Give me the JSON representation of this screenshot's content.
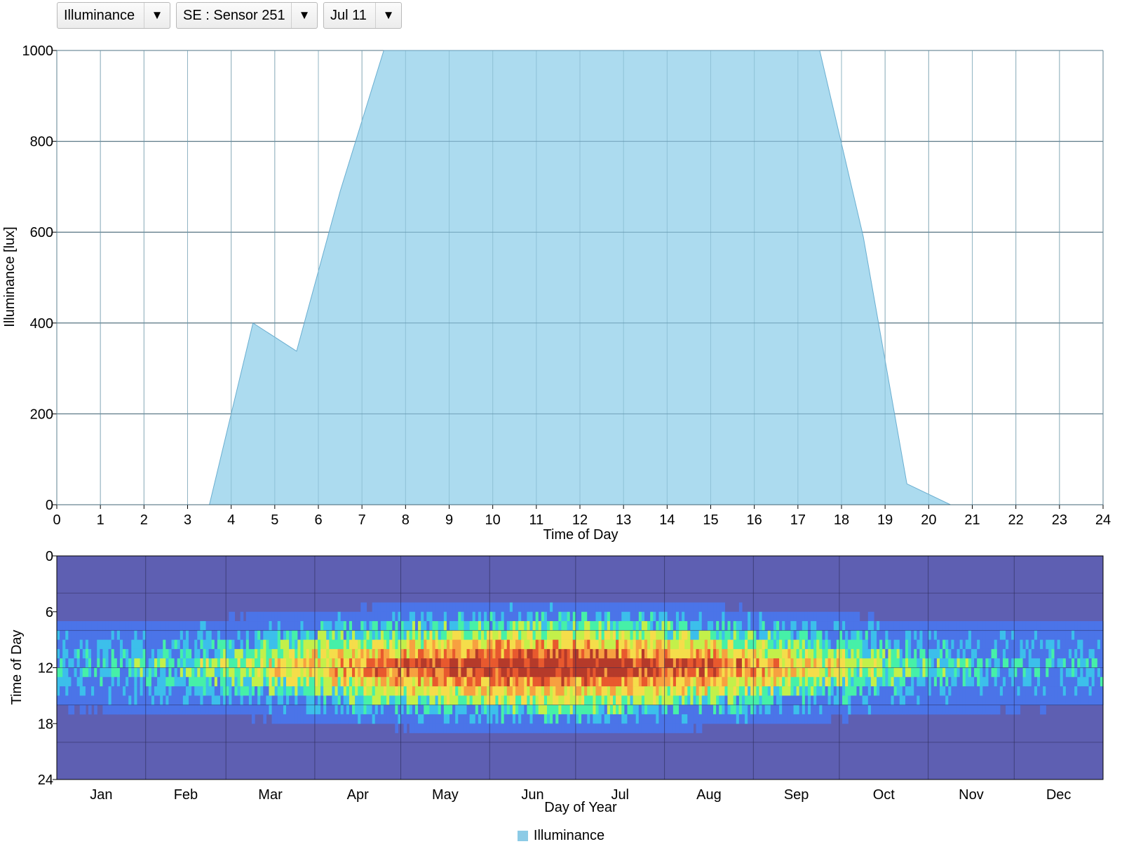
{
  "toolbar": {
    "metric": {
      "value": "Illuminance"
    },
    "sensor": {
      "value": "SE : Sensor 251"
    },
    "date": {
      "value": "Jul 11"
    }
  },
  "chart_data": [
    {
      "type": "area",
      "xlabel": "Time of Day",
      "ylabel": "Illuminance [lux]",
      "xlim": [
        0,
        24
      ],
      "ylim": [
        0,
        1000
      ],
      "xticks": [
        0,
        1,
        2,
        3,
        4,
        5,
        6,
        7,
        8,
        9,
        10,
        11,
        12,
        13,
        14,
        15,
        16,
        17,
        18,
        19,
        20,
        21,
        22,
        23,
        24
      ],
      "yticks": [
        0,
        200,
        400,
        600,
        800,
        1000
      ],
      "grid": true,
      "series": [
        {
          "name": "Illuminance",
          "color": "#a8d9ee",
          "x": [
            0,
            3.5,
            4.5,
            5.5,
            6.5,
            7.5,
            8.5,
            9.5,
            10.5,
            11.5,
            12.5,
            13.5,
            14.5,
            15.5,
            16.5,
            17.5,
            18.5,
            19.5,
            20.5,
            24
          ],
          "values": [
            0,
            0,
            400,
            338,
            690,
            1000,
            1000,
            1000,
            1000,
            1000,
            1000,
            1000,
            1000,
            1000,
            1000,
            1000,
            590,
            46,
            0,
            0
          ]
        }
      ]
    },
    {
      "type": "heatmap",
      "xlabel": "Day of Year",
      "ylabel": "Time of Day",
      "xticklabels": [
        "Jan",
        "Feb",
        "Mar",
        "Apr",
        "May",
        "Jun",
        "Jul",
        "Aug",
        "Sep",
        "Oct",
        "Nov",
        "Dec"
      ],
      "yticks": [
        0,
        6,
        12,
        18,
        24
      ],
      "ylim": [
        0,
        24
      ],
      "xlim": [
        1,
        365
      ],
      "colormap": [
        "#5e5fb2",
        "#4b74e8",
        "#3cbfeb",
        "#46f0a8",
        "#c3f04a",
        "#f5dd4a",
        "#f7a040",
        "#e8592e",
        "#b53a2a"
      ],
      "description_of_pattern": "Daylight hours show high illuminance (red) mid-day peaking in summer; night hours are low (dark blue)."
    }
  ],
  "legend": {
    "entries": [
      {
        "name": "Illuminance",
        "color": "#8ccbe6"
      }
    ]
  }
}
